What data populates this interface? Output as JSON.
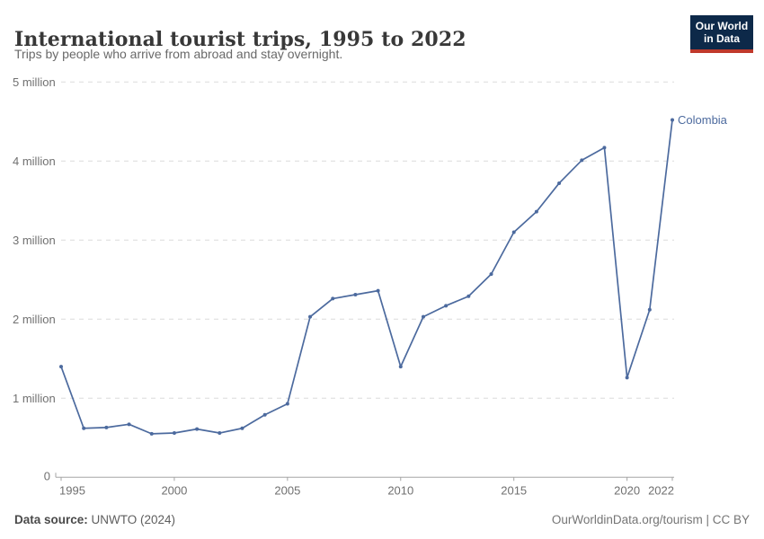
{
  "header": {
    "title": "International tourist trips, 1995 to 2022",
    "subtitle": "Trips by people who arrive from abroad and stay overnight.",
    "logo": {
      "line1": "Our World",
      "line2": "in Data",
      "bg_color": "#0d2949",
      "accent_color": "#c0392b"
    }
  },
  "chart_data": {
    "type": "line",
    "title": "International tourist trips, 1995 to 2022",
    "xlabel": "",
    "ylabel": "",
    "xlim": [
      1995,
      2022
    ],
    "ylim": [
      0,
      5000000
    ],
    "grid": "horizontal-dashed",
    "legend_position": "end-of-line-label",
    "x_ticks": [
      1995,
      2000,
      2005,
      2010,
      2015,
      2020,
      2022
    ],
    "y_ticks": [
      {
        "value": 0,
        "label": "0"
      },
      {
        "value": 1000000,
        "label": "1 million"
      },
      {
        "value": 2000000,
        "label": "2 million"
      },
      {
        "value": 3000000,
        "label": "3 million"
      },
      {
        "value": 4000000,
        "label": "4 million"
      },
      {
        "value": 5000000,
        "label": "5 million"
      }
    ],
    "series": [
      {
        "name": "Colombia",
        "color": "#4c6a9e",
        "x": [
          1995,
          1996,
          1997,
          1998,
          1999,
          2000,
          2001,
          2002,
          2003,
          2004,
          2005,
          2006,
          2007,
          2008,
          2009,
          2010,
          2011,
          2012,
          2013,
          2014,
          2015,
          2016,
          2017,
          2018,
          2019,
          2020,
          2021,
          2022
        ],
        "values": [
          1400000,
          620000,
          630000,
          670000,
          550000,
          560000,
          610000,
          560000,
          620000,
          790000,
          930000,
          2030000,
          2260000,
          2310000,
          2360000,
          1400000,
          2030000,
          2170000,
          2290000,
          2570000,
          3100000,
          3360000,
          3720000,
          4010000,
          4170000,
          1260000,
          2120000,
          4520000
        ]
      }
    ],
    "colors": {
      "line": "#4c6a9e",
      "grid": "#dcdcdc",
      "axis": "#a5a5a5",
      "tick_label": "#707070",
      "entity_label": "#4c6a9e"
    }
  },
  "footer": {
    "source_label": "Data source:",
    "source_value": " UNWTO (2024)",
    "credit_link": "OurWorldinData.org/tourism",
    "credit_sep": " | ",
    "credit_license": "CC BY"
  }
}
